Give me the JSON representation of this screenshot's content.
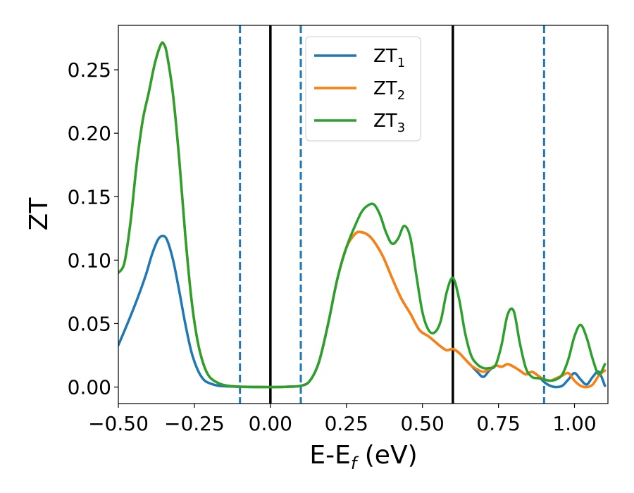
{
  "chart_data": {
    "type": "line",
    "title": "",
    "xlabel": {
      "main": "E-E",
      "sub": "f",
      "unit": " (eV)"
    },
    "ylabel": "ZT",
    "xlim": [
      -0.5,
      1.11
    ],
    "ylim": [
      -0.013,
      0.285
    ],
    "grid": false,
    "legend_position": "top-center",
    "x_ticks": [
      {
        "value": -0.5,
        "label": "−0.50"
      },
      {
        "value": -0.25,
        "label": "−0.25"
      },
      {
        "value": 0.0,
        "label": "0.00"
      },
      {
        "value": 0.25,
        "label": "0.25"
      },
      {
        "value": 0.5,
        "label": "0.50"
      },
      {
        "value": 0.75,
        "label": "0.75"
      },
      {
        "value": 1.0,
        "label": "1.00"
      }
    ],
    "y_ticks": [
      {
        "value": 0.0,
        "label": "0.00"
      },
      {
        "value": 0.05,
        "label": "0.05"
      },
      {
        "value": 0.1,
        "label": "0.10"
      },
      {
        "value": 0.15,
        "label": "0.15"
      },
      {
        "value": 0.2,
        "label": "0.20"
      },
      {
        "value": 0.25,
        "label": "0.25"
      }
    ],
    "vertical_lines": [
      {
        "x": -0.1,
        "style": "dashed",
        "color": "#1f77b4"
      },
      {
        "x": 0.0,
        "style": "solid",
        "color": "#000000"
      },
      {
        "x": 0.1,
        "style": "dashed",
        "color": "#1f77b4"
      },
      {
        "x": 0.6,
        "style": "solid",
        "color": "#000000"
      },
      {
        "x": 0.9,
        "style": "dashed",
        "color": "#1f77b4"
      }
    ],
    "series": [
      {
        "name": "ZT",
        "name_sub": "1",
        "color": "#1f77b4",
        "x": [
          -0.5,
          -0.47,
          -0.44,
          -0.41,
          -0.39,
          -0.37,
          -0.355,
          -0.34,
          -0.32,
          -0.3,
          -0.28,
          -0.26,
          -0.24,
          -0.22,
          -0.2,
          -0.17,
          -0.14,
          -0.1,
          -0.05,
          0.0,
          0.05,
          0.1,
          0.13,
          0.16,
          0.19,
          0.22,
          0.25,
          0.28,
          0.3,
          0.32,
          0.34,
          0.37,
          0.4,
          0.43,
          0.46,
          0.49,
          0.52,
          0.54,
          0.56,
          0.58,
          0.6,
          0.62,
          0.64,
          0.66,
          0.68,
          0.7,
          0.72,
          0.74,
          0.76,
          0.78,
          0.8,
          0.82,
          0.84,
          0.86,
          0.88,
          0.9,
          0.92,
          0.94,
          0.96,
          0.98,
          1.0,
          1.02,
          1.04,
          1.06,
          1.08,
          1.1
        ],
        "y": [
          0.033,
          0.05,
          0.068,
          0.088,
          0.104,
          0.116,
          0.119,
          0.116,
          0.1,
          0.076,
          0.05,
          0.028,
          0.014,
          0.006,
          0.003,
          0.001,
          0.0005,
          0.0002,
          0.0,
          0.0,
          0.0002,
          0.001,
          0.005,
          0.02,
          0.05,
          0.085,
          0.11,
          0.121,
          0.122,
          0.12,
          0.115,
          0.103,
          0.086,
          0.07,
          0.058,
          0.045,
          0.04,
          0.036,
          0.032,
          0.029,
          0.03,
          0.027,
          0.022,
          0.017,
          0.012,
          0.008,
          0.013,
          0.017,
          0.016,
          0.018,
          0.016,
          0.013,
          0.01,
          0.012,
          0.009,
          0.004,
          0.001,
          0.0,
          0.001,
          0.006,
          0.011,
          0.006,
          0.002,
          0.008,
          0.012,
          0.001
        ]
      },
      {
        "name": "ZT",
        "name_sub": "2",
        "color": "#ff7f0e",
        "x": [
          -0.5,
          -0.48,
          -0.46,
          -0.44,
          -0.42,
          -0.4,
          -0.38,
          -0.36,
          -0.35,
          -0.34,
          -0.32,
          -0.3,
          -0.28,
          -0.26,
          -0.24,
          -0.22,
          -0.2,
          -0.17,
          -0.14,
          -0.1,
          -0.05,
          0.0,
          0.05,
          0.1,
          0.13,
          0.16,
          0.19,
          0.22,
          0.25,
          0.28,
          0.3,
          0.32,
          0.34,
          0.37,
          0.4,
          0.43,
          0.46,
          0.49,
          0.52,
          0.54,
          0.56,
          0.58,
          0.6,
          0.62,
          0.64,
          0.66,
          0.68,
          0.7,
          0.72,
          0.74,
          0.76,
          0.78,
          0.8,
          0.82,
          0.84,
          0.86,
          0.88,
          0.9,
          0.92,
          0.94,
          0.96,
          0.98,
          1.0,
          1.02,
          1.04,
          1.06,
          1.08,
          1.1
        ],
        "y": [
          0.09,
          0.098,
          0.13,
          0.175,
          0.21,
          0.232,
          0.255,
          0.27,
          0.27,
          0.262,
          0.23,
          0.18,
          0.12,
          0.07,
          0.037,
          0.018,
          0.008,
          0.003,
          0.001,
          0.0003,
          0.0001,
          0.0,
          0.0002,
          0.001,
          0.005,
          0.02,
          0.05,
          0.085,
          0.11,
          0.121,
          0.122,
          0.12,
          0.115,
          0.103,
          0.086,
          0.07,
          0.058,
          0.045,
          0.04,
          0.036,
          0.032,
          0.029,
          0.03,
          0.027,
          0.022,
          0.017,
          0.014,
          0.012,
          0.014,
          0.017,
          0.016,
          0.018,
          0.016,
          0.013,
          0.01,
          0.012,
          0.009,
          0.006,
          0.005,
          0.007,
          0.009,
          0.011,
          0.005,
          0.001,
          0.0,
          0.002,
          0.009,
          0.013
        ]
      },
      {
        "name": "ZT",
        "name_sub": "3",
        "color": "#2ca02c",
        "x": [
          -0.5,
          -0.48,
          -0.46,
          -0.44,
          -0.42,
          -0.4,
          -0.38,
          -0.36,
          -0.35,
          -0.34,
          -0.32,
          -0.3,
          -0.28,
          -0.26,
          -0.24,
          -0.22,
          -0.2,
          -0.17,
          -0.14,
          -0.1,
          -0.05,
          0.0,
          0.05,
          0.1,
          0.13,
          0.16,
          0.19,
          0.22,
          0.25,
          0.28,
          0.3,
          0.32,
          0.34,
          0.36,
          0.38,
          0.4,
          0.42,
          0.44,
          0.46,
          0.48,
          0.5,
          0.52,
          0.54,
          0.56,
          0.58,
          0.6,
          0.62,
          0.64,
          0.66,
          0.68,
          0.7,
          0.72,
          0.74,
          0.76,
          0.78,
          0.8,
          0.82,
          0.84,
          0.86,
          0.88,
          0.9,
          0.92,
          0.94,
          0.96,
          0.98,
          1.0,
          1.02,
          1.04,
          1.06,
          1.08,
          1.1
        ],
        "y": [
          0.09,
          0.098,
          0.13,
          0.175,
          0.21,
          0.232,
          0.255,
          0.27,
          0.27,
          0.262,
          0.23,
          0.18,
          0.12,
          0.07,
          0.037,
          0.018,
          0.008,
          0.003,
          0.001,
          0.0003,
          0.0001,
          0.0,
          0.0002,
          0.001,
          0.005,
          0.02,
          0.05,
          0.085,
          0.11,
          0.128,
          0.138,
          0.143,
          0.144,
          0.136,
          0.122,
          0.113,
          0.117,
          0.127,
          0.118,
          0.088,
          0.059,
          0.045,
          0.043,
          0.052,
          0.075,
          0.086,
          0.07,
          0.043,
          0.025,
          0.018,
          0.015,
          0.015,
          0.017,
          0.033,
          0.057,
          0.06,
          0.035,
          0.015,
          0.008,
          0.007,
          0.006,
          0.005,
          0.006,
          0.01,
          0.022,
          0.04,
          0.049,
          0.039,
          0.022,
          0.01,
          0.018
        ]
      }
    ]
  }
}
